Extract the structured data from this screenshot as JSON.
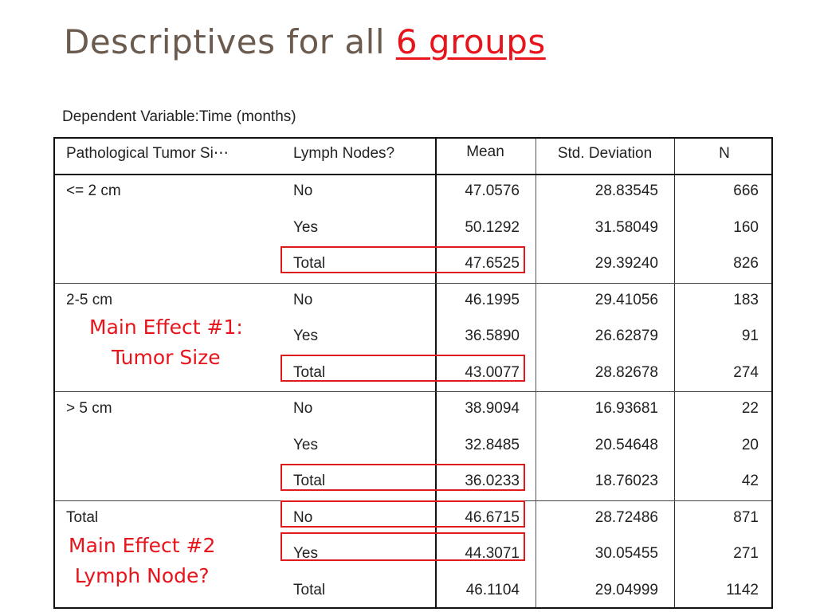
{
  "title": {
    "prefix": "Descriptives for all ",
    "highlight": "6 groups"
  },
  "subtitle": "Dependent Variable:Time (months)",
  "table": {
    "headers": [
      "Pathological Tumor Si⋯",
      "Lymph Nodes?",
      "Mean",
      "Std. Deviation",
      "N"
    ],
    "groups": [
      {
        "label": "<= 2 cm",
        "rows": [
          {
            "lymph": "No",
            "mean": "47.0576",
            "sd": "28.83545",
            "n": "666"
          },
          {
            "lymph": "Yes",
            "mean": "50.1292",
            "sd": "31.58049",
            "n": "160"
          },
          {
            "lymph": "Total",
            "mean": "47.6525",
            "sd": "29.39240",
            "n": "826"
          }
        ]
      },
      {
        "label": "2-5 cm",
        "rows": [
          {
            "lymph": "No",
            "mean": "46.1995",
            "sd": "29.41056",
            "n": "183"
          },
          {
            "lymph": "Yes",
            "mean": "36.5890",
            "sd": "26.62879",
            "n": "91"
          },
          {
            "lymph": "Total",
            "mean": "43.0077",
            "sd": "28.82678",
            "n": "274"
          }
        ]
      },
      {
        "label": "> 5 cm",
        "rows": [
          {
            "lymph": "No",
            "mean": "38.9094",
            "sd": "16.93681",
            "n": "22"
          },
          {
            "lymph": "Yes",
            "mean": "32.8485",
            "sd": "20.54648",
            "n": "20"
          },
          {
            "lymph": "Total",
            "mean": "36.0233",
            "sd": "18.76023",
            "n": "42"
          }
        ]
      },
      {
        "label": "Total",
        "rows": [
          {
            "lymph": "No",
            "mean": "46.6715",
            "sd": "28.72486",
            "n": "871"
          },
          {
            "lymph": "Yes",
            "mean": "44.3071",
            "sd": "30.05455",
            "n": "271"
          },
          {
            "lymph": "Total",
            "mean": "46.1104",
            "sd": "29.04999",
            "n": "1142"
          }
        ]
      }
    ]
  },
  "annotations": {
    "main_effect_1": [
      "Main Effect #1:",
      "Tumor Size"
    ],
    "main_effect_2": [
      "Main Effect #2",
      "Lymph Node?"
    ]
  },
  "colors": {
    "title": "#6b5a4e",
    "highlight": "#e8141c",
    "box": "#e01a1a"
  }
}
